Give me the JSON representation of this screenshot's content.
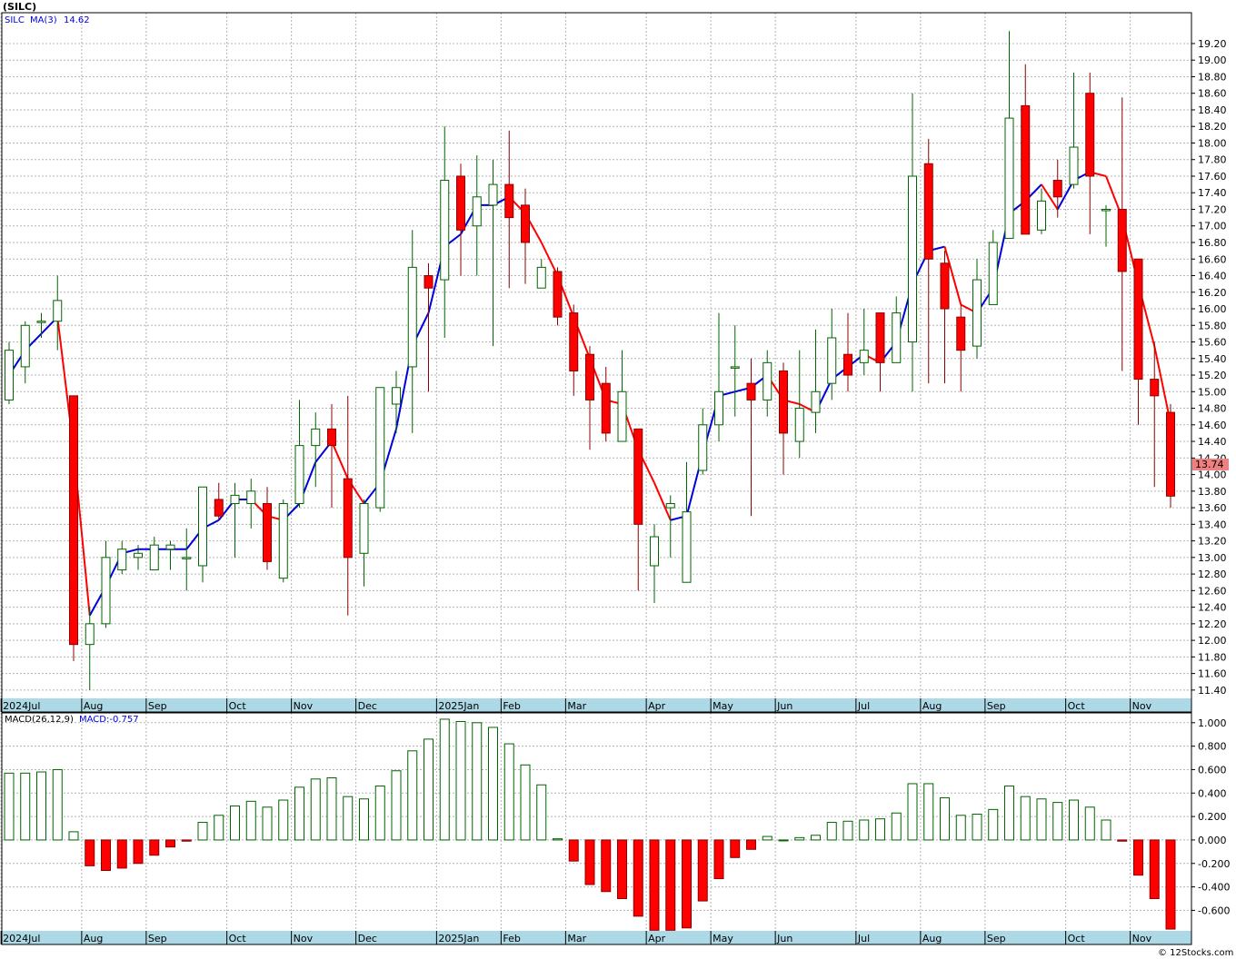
{
  "title": "(SILC)",
  "price_legend": {
    "symbol": "SILC",
    "ma_label": "MA(3)",
    "ma_value": "14.62"
  },
  "last_price_label": "13.74",
  "macd_legend": {
    "label": "MACD(26,12,9)",
    "value_label": "MACD:-0.757"
  },
  "watermark": "© 12Stocks.com",
  "colors": {
    "up": "#006400",
    "down": "#ff0000",
    "ma_up": "#0000dd",
    "ma_down": "#ff0000",
    "grid": "#b4b4b4",
    "axis_band": "#add8e6"
  },
  "chart_data": [
    {
      "type": "candlestick",
      "period": "weekly",
      "y_axis": {
        "ticks": [
          11.4,
          11.6,
          11.8,
          12.0,
          12.2,
          12.4,
          12.6,
          12.8,
          13.0,
          13.2,
          13.4,
          13.6,
          13.8,
          14.0,
          14.2,
          14.4,
          14.6,
          14.8,
          15.0,
          15.2,
          15.4,
          15.6,
          15.8,
          16.0,
          16.2,
          16.4,
          16.6,
          16.8,
          17.0,
          17.2,
          17.4,
          17.6,
          17.8,
          18.0,
          18.2,
          18.4,
          18.6,
          18.8,
          19.0,
          19.2
        ],
        "range": [
          11.3,
          19.55
        ]
      },
      "x_axis": {
        "labels": [
          {
            "week": 0,
            "text": "2024Jul"
          },
          {
            "week": 5,
            "text": "Aug"
          },
          {
            "week": 9,
            "text": "Sep"
          },
          {
            "week": 14,
            "text": "Oct"
          },
          {
            "week": 18,
            "text": "Nov"
          },
          {
            "week": 22,
            "text": "Dec"
          },
          {
            "week": 27,
            "text": "2025Jan"
          },
          {
            "week": 31,
            "text": "Feb"
          },
          {
            "week": 35,
            "text": "Mar"
          },
          {
            "week": 40,
            "text": "Apr"
          },
          {
            "week": 44,
            "text": "May"
          },
          {
            "week": 48,
            "text": "Jun"
          },
          {
            "week": 53,
            "text": "Jul"
          },
          {
            "week": 57,
            "text": "Aug"
          },
          {
            "week": 61,
            "text": "Sep"
          },
          {
            "week": 66,
            "text": "Oct"
          },
          {
            "week": 70,
            "text": "Nov"
          }
        ]
      },
      "candles": [
        [
          14.9,
          15.5,
          14.85,
          15.6
        ],
        [
          15.3,
          15.8,
          15.1,
          15.85
        ],
        [
          15.85,
          15.85,
          15.65,
          15.95
        ],
        [
          15.85,
          16.1,
          15.5,
          16.4
        ],
        [
          14.95,
          11.95,
          11.75,
          14.95
        ],
        [
          11.95,
          12.2,
          11.4,
          12.4
        ],
        [
          12.2,
          13.0,
          12.15,
          13.2
        ],
        [
          12.85,
          13.1,
          12.8,
          13.2
        ],
        [
          13.0,
          13.05,
          12.85,
          13.15
        ],
        [
          12.85,
          13.15,
          12.85,
          13.25
        ],
        [
          13.1,
          13.15,
          12.85,
          13.2
        ],
        [
          13.0,
          13.0,
          12.6,
          13.35
        ],
        [
          12.9,
          13.85,
          12.7,
          13.85
        ],
        [
          13.7,
          13.5,
          13.45,
          13.9
        ],
        [
          13.65,
          13.75,
          13.0,
          13.9
        ],
        [
          13.65,
          13.8,
          13.35,
          13.95
        ],
        [
          13.65,
          12.95,
          12.85,
          13.85
        ],
        [
          12.75,
          13.65,
          12.7,
          13.7
        ],
        [
          13.65,
          14.35,
          13.6,
          14.9
        ],
        [
          14.35,
          14.55,
          13.85,
          14.75
        ],
        [
          14.55,
          14.35,
          13.6,
          14.85
        ],
        [
          13.95,
          13.0,
          12.3,
          14.95
        ],
        [
          13.05,
          13.65,
          12.65,
          13.7
        ],
        [
          13.6,
          15.05,
          13.55,
          15.05
        ],
        [
          14.85,
          15.05,
          14.5,
          15.25
        ],
        [
          15.3,
          16.5,
          14.5,
          16.95
        ],
        [
          16.4,
          16.25,
          15.0,
          16.55
        ],
        [
          16.35,
          17.55,
          15.65,
          18.2
        ],
        [
          17.6,
          16.95,
          16.4,
          17.75
        ],
        [
          17.0,
          17.35,
          16.4,
          17.85
        ],
        [
          17.25,
          17.5,
          15.55,
          17.8
        ],
        [
          17.5,
          17.1,
          16.25,
          18.15
        ],
        [
          17.25,
          16.8,
          16.3,
          17.45
        ],
        [
          16.25,
          16.5,
          16.25,
          16.6
        ],
        [
          16.45,
          15.9,
          15.8,
          16.5
        ],
        [
          15.95,
          15.25,
          14.95,
          16.05
        ],
        [
          15.45,
          14.9,
          14.3,
          15.55
        ],
        [
          15.1,
          14.5,
          14.4,
          15.3
        ],
        [
          14.4,
          15.0,
          14.4,
          15.5
        ],
        [
          14.55,
          13.4,
          12.6,
          14.55
        ],
        [
          12.9,
          13.25,
          12.45,
          13.4
        ],
        [
          13.6,
          13.65,
          13.0,
          13.75
        ],
        [
          12.7,
          13.55,
          12.7,
          14.15
        ],
        [
          14.05,
          14.6,
          14.0,
          14.8
        ],
        [
          14.6,
          15.0,
          14.4,
          15.95
        ],
        [
          15.3,
          15.3,
          14.7,
          15.8
        ],
        [
          15.1,
          14.9,
          13.5,
          15.4
        ],
        [
          14.9,
          15.35,
          14.7,
          15.5
        ],
        [
          15.25,
          14.5,
          14.0,
          15.35
        ],
        [
          14.4,
          14.8,
          14.2,
          15.5
        ],
        [
          14.75,
          15.0,
          14.5,
          15.75
        ],
        [
          15.1,
          15.65,
          14.9,
          16.0
        ],
        [
          15.45,
          15.2,
          15.0,
          15.95
        ],
        [
          15.35,
          15.5,
          15.2,
          16.0
        ],
        [
          15.95,
          15.35,
          15.0,
          15.95
        ],
        [
          15.35,
          15.95,
          15.35,
          16.15
        ],
        [
          15.6,
          17.6,
          15.0,
          18.6
        ],
        [
          17.75,
          16.6,
          15.1,
          18.05
        ],
        [
          16.55,
          16.0,
          15.1,
          16.7
        ],
        [
          15.9,
          15.5,
          15.0,
          16.05
        ],
        [
          15.55,
          16.35,
          15.4,
          16.6
        ],
        [
          16.05,
          16.8,
          16.05,
          16.95
        ],
        [
          16.85,
          18.3,
          16.85,
          19.35
        ],
        [
          18.45,
          16.9,
          16.9,
          18.95
        ],
        [
          16.95,
          17.3,
          16.9,
          17.45
        ],
        [
          17.55,
          17.35,
          17.1,
          17.8
        ],
        [
          17.5,
          17.95,
          17.45,
          18.85
        ],
        [
          18.6,
          17.6,
          16.9,
          18.85
        ],
        [
          17.2,
          17.2,
          16.75,
          17.25
        ],
        [
          17.2,
          16.45,
          15.25,
          18.55
        ],
        [
          16.6,
          15.15,
          14.6,
          16.6
        ],
        [
          15.15,
          14.95,
          13.85,
          15.6
        ],
        [
          14.75,
          13.74,
          13.6,
          14.85
        ]
      ],
      "ma3": [
        15.2,
        15.5,
        15.7,
        15.9,
        14.3,
        12.3,
        12.65,
        13.05,
        13.1,
        13.1,
        13.1,
        13.1,
        13.35,
        13.45,
        13.7,
        13.7,
        13.5,
        13.45,
        13.65,
        14.15,
        14.4,
        13.95,
        13.65,
        13.9,
        14.55,
        15.55,
        15.95,
        16.75,
        16.9,
        17.25,
        17.25,
        17.35,
        17.15,
        16.8,
        16.4,
        15.9,
        15.4,
        14.9,
        14.85,
        14.3,
        13.9,
        13.45,
        13.5,
        14.25,
        14.95,
        15.0,
        15.05,
        15.2,
        14.9,
        14.85,
        14.75,
        15.15,
        15.3,
        15.45,
        15.35,
        15.6,
        16.3,
        16.7,
        16.75,
        16.05,
        15.95,
        16.25,
        17.15,
        17.3,
        17.5,
        17.2,
        17.55,
        17.65,
        17.6,
        17.1,
        16.3,
        15.55,
        14.62
      ]
    },
    {
      "type": "bar",
      "name": "MACD(26,12,9)",
      "y_axis": {
        "ticks": [
          -0.6,
          -0.4,
          -0.2,
          0.0,
          0.2,
          0.4,
          0.6,
          0.8,
          1.0
        ],
        "tick_labels": [
          "-0.600",
          "-0.400",
          "-0.200",
          "0.000",
          "0.200",
          "0.400",
          "0.600",
          "0.800",
          "1.000"
        ],
        "range": [
          -0.775,
          1.045
        ]
      },
      "values": [
        0.57,
        0.57,
        0.58,
        0.6,
        0.07,
        -0.22,
        -0.26,
        -0.24,
        -0.2,
        -0.13,
        -0.06,
        -0.01,
        0.15,
        0.21,
        0.29,
        0.33,
        0.28,
        0.34,
        0.45,
        0.52,
        0.53,
        0.37,
        0.35,
        0.46,
        0.59,
        0.76,
        0.86,
        1.03,
        1.01,
        1.0,
        0.96,
        0.82,
        0.64,
        0.47,
        0.01,
        -0.18,
        -0.38,
        -0.44,
        -0.5,
        -0.65,
        -0.77,
        -0.77,
        -0.75,
        -0.52,
        -0.33,
        -0.15,
        -0.08,
        0.03,
        0.0,
        0.02,
        0.04,
        0.15,
        0.16,
        0.17,
        0.18,
        0.23,
        0.48,
        0.48,
        0.36,
        0.21,
        0.22,
        0.26,
        0.46,
        0.37,
        0.35,
        0.32,
        0.34,
        0.28,
        0.17,
        -0.01,
        -0.3,
        -0.5,
        -0.76
      ]
    }
  ]
}
